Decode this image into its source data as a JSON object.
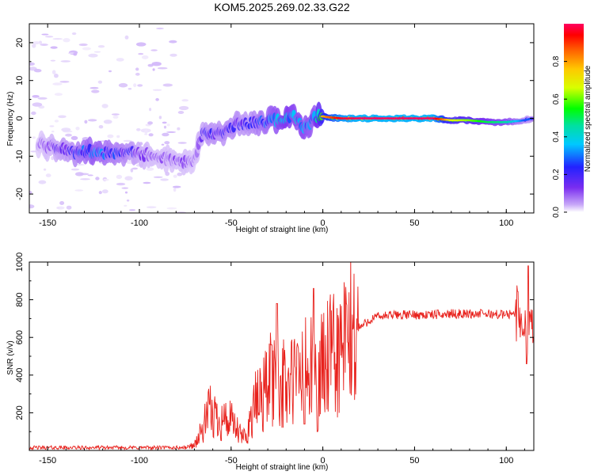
{
  "title": "KOM5.2025.269.02.33.G22",
  "chart_data": [
    {
      "type": "heatmap",
      "xlabel": "Height of straight line (km)",
      "ylabel": "Frequency (Hz)",
      "xlim": [
        -160,
        115
      ],
      "ylim": [
        -25,
        25
      ],
      "xticks": [
        -150,
        -100,
        -50,
        0,
        50,
        100
      ],
      "yticks": [
        -20,
        -10,
        0,
        10,
        20
      ],
      "colorbar": {
        "label": "Normalized spectral amplitude",
        "range": [
          0.0,
          1.0
        ],
        "ticks": [
          0.0,
          0.2,
          0.4,
          0.6,
          0.8
        ],
        "tick_labels": [
          "0.0",
          "0.2",
          "0.4",
          "0.6",
          "0.8"
        ],
        "colormap": [
          "#ffffff",
          "#c8a8f8",
          "#7a2df0",
          "#2222ff",
          "#00c8ff",
          "#00e0a0",
          "#00ff00",
          "#d8ff00",
          "#ffc800",
          "#ff6000",
          "#ff0000",
          "#ff0060"
        ]
      },
      "ridge": {
        "x": [
          -155,
          -145,
          -135,
          -125,
          -115,
          -105,
          -95,
          -85,
          -75,
          -70,
          -65,
          -60,
          -55,
          -50,
          -45,
          -40,
          -35,
          -30,
          -25,
          -20,
          -15,
          -10,
          -5,
          0,
          5,
          10,
          20,
          30,
          40,
          50,
          60,
          70,
          80,
          90,
          100,
          110,
          114
        ],
        "freq": [
          -6.5,
          -7.5,
          -8.5,
          -9,
          -9.3,
          -8.5,
          -9.5,
          -10.5,
          -11.5,
          -11,
          -3.5,
          -4.5,
          -3.5,
          -2.5,
          -1.5,
          -1.5,
          -0.5,
          -1,
          -0.3,
          0,
          0.5,
          -2.5,
          0.3,
          0.5,
          0.2,
          0,
          0,
          0,
          0,
          0,
          0,
          -0.5,
          -0.5,
          -1,
          -1,
          -0.5,
          0
        ],
        "amp": [
          0.15,
          0.25,
          0.33,
          0.42,
          0.35,
          0.3,
          0.2,
          0.18,
          0.2,
          0.15,
          0.28,
          0.3,
          0.3,
          0.32,
          0.3,
          0.3,
          0.35,
          0.38,
          0.45,
          0.5,
          0.45,
          0.45,
          0.4,
          0.75,
          0.85,
          0.95,
          1.0,
          1.0,
          1.0,
          1.0,
          1.0,
          0.65,
          0.6,
          0.5,
          0.45,
          0.3,
          0.3
        ]
      },
      "noise_region": {
        "x": [
          -160,
          -75
        ],
        "freq": [
          -25,
          25
        ],
        "amp": 0.05
      }
    },
    {
      "type": "line",
      "xlabel": "Height of straight line (km)",
      "ylabel": "SNR (v/v)",
      "xlim": [
        -160,
        115
      ],
      "ylim": [
        0,
        1000
      ],
      "xticks": [
        -150,
        -100,
        -50,
        0,
        50,
        100
      ],
      "yticks": [
        200,
        400,
        600,
        800,
        1000
      ],
      "series": [
        {
          "name": "SNR",
          "color": "#e8211c",
          "envelope_x": [
            -160,
            -75,
            -70,
            -66,
            -62,
            -58,
            -55,
            -50,
            -45,
            -42,
            -38,
            -30,
            -25,
            -20,
            -15,
            -10,
            -5,
            0,
            5,
            10,
            15,
            20,
            25,
            30,
            40,
            50,
            60,
            70,
            80,
            90,
            100,
            105,
            108,
            110,
            112,
            114
          ],
          "envelope_y": [
            15,
            15,
            30,
            100,
            200,
            180,
            170,
            150,
            80,
            70,
            220,
            350,
            380,
            330,
            380,
            420,
            400,
            450,
            480,
            520,
            600,
            650,
            690,
            710,
            720,
            720,
            720,
            725,
            725,
            725,
            720,
            730,
            720,
            600,
            700,
            710
          ],
          "features": [
            {
              "x": -25,
              "y": 780
            },
            {
              "x": -28,
              "y": 560
            },
            {
              "x": -10,
              "y": 140
            },
            {
              "x": -5,
              "y": 860
            },
            {
              "x": -3,
              "y": 100
            },
            {
              "x": 111,
              "y": 460
            },
            {
              "x": 112,
              "y": 980
            }
          ]
        }
      ]
    }
  ]
}
